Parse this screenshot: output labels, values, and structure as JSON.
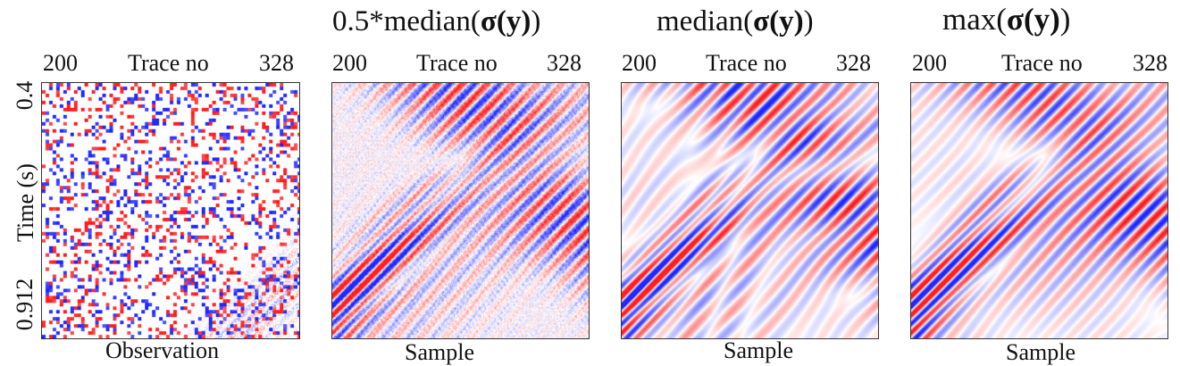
{
  "titles": {
    "panel2_prefix": "0.5*",
    "panel2_fn": "median",
    "panel3_fn": "median",
    "panel4_fn": "max",
    "sigma_expr": "σ(y)"
  },
  "axis": {
    "x_label": "Trace no",
    "x_start": "200",
    "x_end": "328",
    "y_label": "Time (s)",
    "y_top": "0.4",
    "y_bottom": "0.912"
  },
  "panels": [
    {
      "caption": "Observation",
      "kind": "observation"
    },
    {
      "caption": "Sample",
      "kind": "sample-noisy"
    },
    {
      "caption": "Sample",
      "kind": "sample-median"
    },
    {
      "caption": "Sample",
      "kind": "sample-max"
    }
  ],
  "colors": {
    "positive": "#d62728",
    "negative": "#1f3fd6",
    "background": "#ffffff"
  }
}
